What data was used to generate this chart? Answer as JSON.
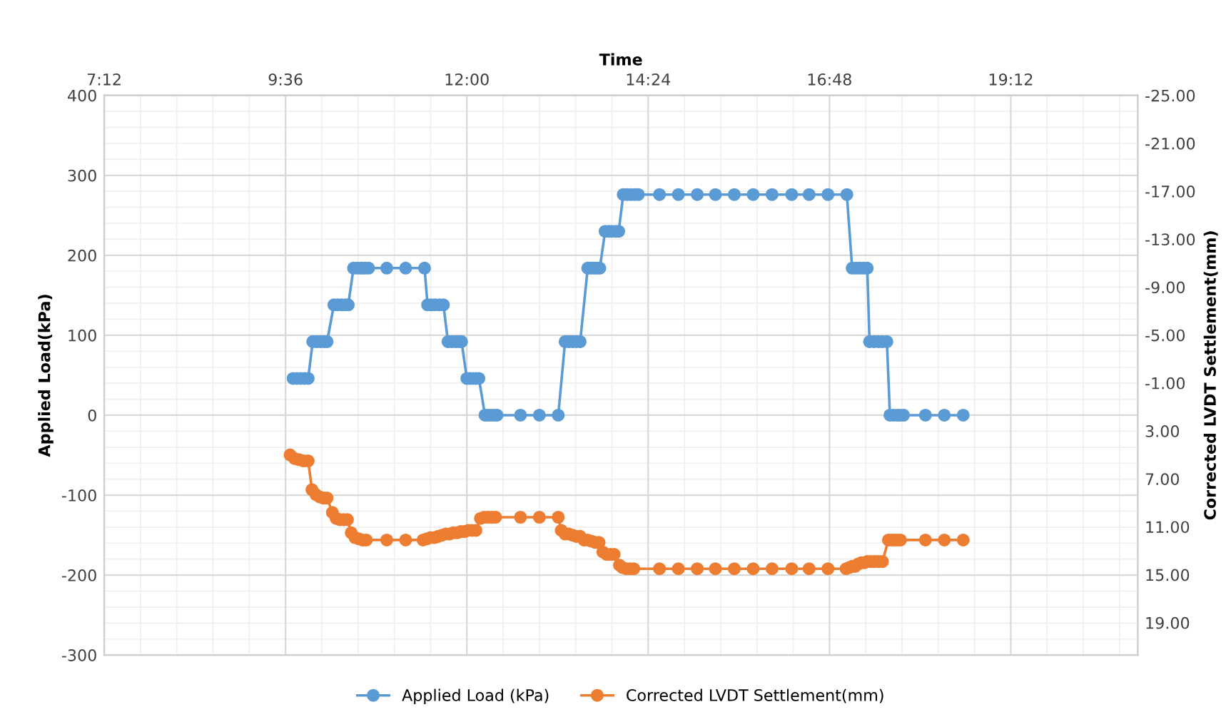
{
  "chart_data": {
    "type": "line",
    "xlabel": "Time",
    "ylabel": "Applied Load(kPa)",
    "y2label": "Corrected LVDT Settlement(mm)",
    "xlim": [
      7.2,
      20.88
    ],
    "xticks": [
      {
        "value": 7.2,
        "label": "7:12"
      },
      {
        "value": 9.6,
        "label": "9:36"
      },
      {
        "value": 12,
        "label": "12:00"
      },
      {
        "value": 14.4,
        "label": "14:24"
      },
      {
        "value": 16.8,
        "label": "16:48"
      },
      {
        "value": 19.2,
        "label": "19:12"
      }
    ],
    "ylim": [
      -300,
      400
    ],
    "yticks": [
      -300,
      -200,
      -100,
      0,
      100,
      200,
      300,
      400
    ],
    "y2lim": [
      21.7,
      -25
    ],
    "y2ticks": [
      {
        "value": -25,
        "label": "-25.00"
      },
      {
        "value": -21,
        "label": "-21.00"
      },
      {
        "value": -17,
        "label": "-17.00"
      },
      {
        "value": -13,
        "label": "-13.00"
      },
      {
        "value": -9,
        "label": "-9.00"
      },
      {
        "value": -5,
        "label": "-5.00"
      },
      {
        "value": -1,
        "label": "-1.00"
      },
      {
        "value": 3,
        "label": "3.00"
      },
      {
        "value": 7,
        "label": "7.00"
      },
      {
        "value": 11,
        "label": "11.00"
      },
      {
        "value": 15,
        "label": "15.00"
      },
      {
        "value": 19,
        "label": "19.00"
      }
    ],
    "grid": true,
    "legend": "bottom",
    "marker": "circle",
    "line_style": "solid",
    "series": [
      {
        "name": "Applied Load (kPa)",
        "color": "#5b9bd5",
        "x": [
          9.7,
          9.75,
          9.8,
          9.85,
          9.9,
          9.96,
          10.01,
          10.06,
          10.11,
          10.15,
          10.24,
          10.29,
          10.34,
          10.39,
          10.43,
          10.5,
          10.55,
          10.6,
          10.65,
          10.7,
          10.94,
          11.19,
          11.44,
          11.48,
          11.53,
          11.58,
          11.64,
          11.69,
          11.75,
          11.8,
          11.85,
          11.9,
          11.93,
          12.0,
          12.04,
          12.08,
          12.12,
          12.16,
          12.24,
          12.28,
          12.32,
          12.36,
          12.4,
          12.71,
          12.96,
          13.21,
          13.3,
          13.35,
          13.4,
          13.45,
          13.5,
          13.6,
          13.64,
          13.68,
          13.72,
          13.76,
          13.83,
          13.88,
          13.92,
          13.97,
          14.01,
          14.07,
          14.12,
          14.17,
          14.22,
          14.27,
          14.55,
          14.8,
          15.05,
          15.29,
          15.54,
          15.79,
          16.04,
          16.3,
          16.53,
          16.78,
          17.03,
          17.1,
          17.15,
          17.2,
          17.25,
          17.3,
          17.33,
          17.39,
          17.45,
          17.5,
          17.56,
          17.6,
          17.65,
          17.7,
          17.74,
          17.78,
          18.07,
          18.32,
          18.57
        ],
        "values": [
          46,
          46,
          46,
          46,
          46,
          92,
          92,
          92,
          92,
          92,
          138,
          138,
          138,
          138,
          138,
          184,
          184,
          184,
          184,
          184,
          184,
          184,
          184,
          138,
          138,
          138,
          138,
          138,
          92,
          92,
          92,
          92,
          92,
          46,
          46,
          46,
          46,
          46,
          0,
          0,
          0,
          0,
          0,
          0,
          0,
          0,
          92,
          92,
          92,
          92,
          92,
          184,
          184,
          184,
          184,
          184,
          230,
          230,
          230,
          230,
          230,
          276,
          276,
          276,
          276,
          276,
          276,
          276,
          276,
          276,
          276,
          276,
          276,
          276,
          276,
          276,
          276,
          184,
          184,
          184,
          184,
          184,
          92,
          92,
          92,
          92,
          92,
          0,
          0,
          0,
          0,
          0,
          0,
          0,
          0
        ]
      },
      {
        "name": "Corrected LVDT Settlement(mm)",
        "color": "#ed7d31",
        "axis": "y2",
        "x": [
          9.66,
          9.72,
          9.78,
          9.84,
          9.9,
          9.95,
          10.0,
          10.05,
          10.1,
          10.15,
          10.22,
          10.27,
          10.32,
          10.37,
          10.42,
          10.47,
          10.52,
          10.57,
          10.62,
          10.67,
          10.94,
          11.19,
          11.42,
          11.47,
          11.52,
          11.57,
          11.62,
          11.67,
          11.72,
          11.77,
          11.82,
          11.87,
          11.92,
          11.97,
          12.02,
          12.07,
          12.12,
          12.18,
          12.23,
          12.28,
          12.33,
          12.38,
          12.71,
          12.96,
          13.21,
          13.25,
          13.3,
          13.35,
          13.4,
          13.45,
          13.5,
          13.55,
          13.6,
          13.65,
          13.7,
          13.75,
          13.8,
          13.85,
          13.9,
          13.95,
          14.02,
          14.06,
          14.11,
          14.16,
          14.21,
          14.55,
          14.8,
          15.05,
          15.29,
          15.54,
          15.79,
          16.04,
          16.3,
          16.53,
          16.78,
          17.02,
          17.06,
          17.1,
          17.14,
          17.18,
          17.22,
          17.26,
          17.3,
          17.35,
          17.4,
          17.45,
          17.5,
          17.58,
          17.62,
          17.66,
          17.7,
          17.74,
          18.07,
          18.32,
          18.57
        ],
        "values": [
          5.0,
          5.3,
          5.4,
          5.5,
          5.5,
          7.9,
          8.3,
          8.5,
          8.6,
          8.6,
          9.8,
          10.3,
          10.4,
          10.4,
          10.4,
          11.5,
          11.9,
          12.0,
          12.1,
          12.1,
          12.1,
          12.1,
          12.1,
          12.0,
          11.9,
          11.9,
          11.8,
          11.7,
          11.6,
          11.6,
          11.5,
          11.5,
          11.4,
          11.4,
          11.3,
          11.3,
          11.3,
          10.3,
          10.2,
          10.2,
          10.2,
          10.2,
          10.2,
          10.2,
          10.2,
          11.3,
          11.6,
          11.6,
          11.7,
          11.8,
          11.8,
          12.1,
          12.1,
          12.2,
          12.3,
          12.3,
          13.1,
          13.3,
          13.3,
          13.3,
          14.2,
          14.4,
          14.5,
          14.5,
          14.5,
          14.5,
          14.5,
          14.5,
          14.5,
          14.5,
          14.5,
          14.5,
          14.5,
          14.5,
          14.5,
          14.5,
          14.4,
          14.3,
          14.3,
          14.1,
          14.0,
          14.0,
          13.9,
          13.9,
          13.9,
          13.9,
          13.9,
          12.1,
          12.1,
          12.1,
          12.1,
          12.1,
          12.1,
          12.1,
          12.1
        ]
      }
    ]
  }
}
